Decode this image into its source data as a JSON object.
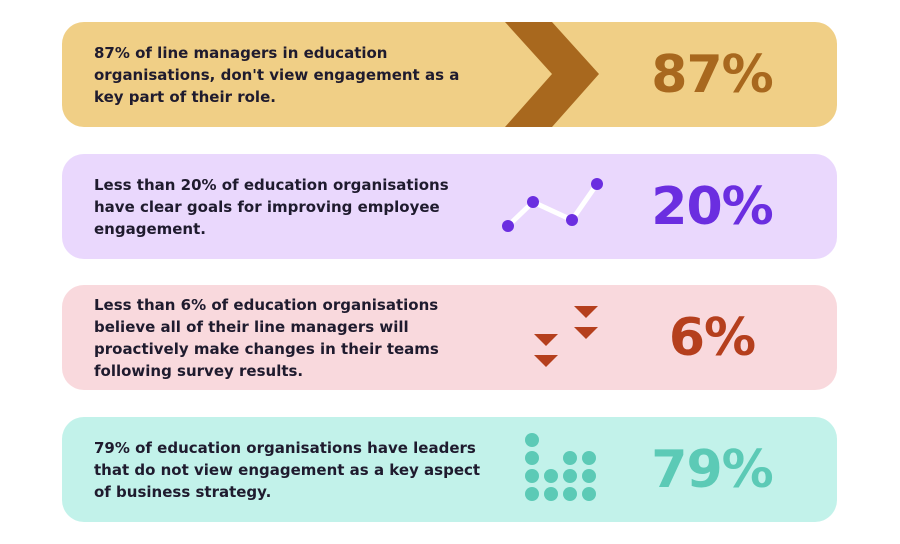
{
  "stats": [
    {
      "text": "87% of line managers in education organisations, don't view engagement as a key part of their role.",
      "value": "87%",
      "icon": "chevron-right-icon",
      "color": "#a8681e",
      "background": "#f0cf86"
    },
    {
      "text": "Less than 20% of education organisations have clear goals for improving employee engagement.",
      "value": "20%",
      "icon": "line-graph-icon",
      "color": "#6b2ee0",
      "background": "#ead8fd"
    },
    {
      "text": "Less than 6% of education organisations believe all of their line managers will proactively make changes in their teams following survey results.",
      "value": "6%",
      "icon": "down-arrows-icon",
      "color": "#b53f1d",
      "background": "#f9d9dd"
    },
    {
      "text": "79% of education organisations have leaders that do not view engagement as a key aspect of business strategy.",
      "value": "79%",
      "icon": "dot-grid-icon",
      "color": "#5ccab6",
      "background": "#c2f2ea"
    }
  ]
}
